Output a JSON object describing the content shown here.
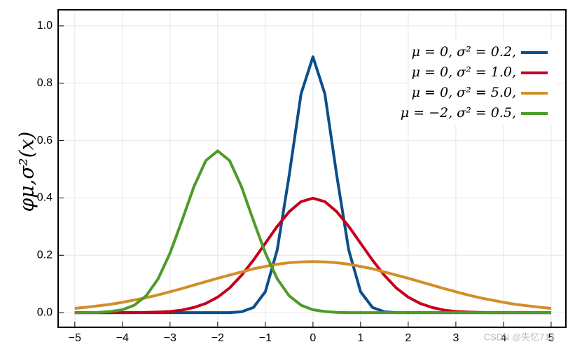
{
  "chart_data": {
    "type": "line",
    "y_label": "φμ,σ²(x)",
    "watermark": "CSDN @失忆713",
    "x": [
      -5,
      -4.75,
      -4.5,
      -4.25,
      -4,
      -3.75,
      -3.5,
      -3.25,
      -3,
      -2.75,
      -2.5,
      -2.25,
      -2,
      -1.75,
      -1.5,
      -1.25,
      -1,
      -0.75,
      -0.5,
      -0.25,
      0,
      0.25,
      0.5,
      0.75,
      1,
      1.25,
      1.5,
      1.75,
      2,
      2.25,
      2.5,
      2.75,
      3,
      3.25,
      3.5,
      3.75,
      4,
      4.25,
      4.5,
      4.75,
      5
    ],
    "series": [
      {
        "name": "μ = 0,   σ² = 0.2,",
        "color": "#0b4f8a",
        "values": [
          0,
          0,
          0,
          0,
          0,
          0,
          0,
          0,
          0,
          0,
          0,
          0,
          0,
          0,
          0.003,
          0.018,
          0.073,
          0.219,
          0.478,
          0.763,
          0.892,
          0.763,
          0.478,
          0.219,
          0.073,
          0.018,
          0.003,
          0,
          0,
          0,
          0,
          0,
          0,
          0,
          0,
          0,
          0,
          0,
          0,
          0,
          0
        ]
      },
      {
        "name": "μ = 0,   σ² = 1.0,",
        "color": "#c4001a",
        "values": [
          0,
          0,
          0,
          0,
          0,
          0,
          0.001,
          0.002,
          0.004,
          0.009,
          0.018,
          0.032,
          0.054,
          0.086,
          0.13,
          0.183,
          0.242,
          0.301,
          0.352,
          0.387,
          0.399,
          0.387,
          0.352,
          0.301,
          0.242,
          0.183,
          0.13,
          0.086,
          0.054,
          0.032,
          0.018,
          0.009,
          0.004,
          0.002,
          0.001,
          0,
          0,
          0,
          0,
          0,
          0
        ]
      },
      {
        "name": "μ = 0,   σ² = 5.0,",
        "color": "#d08f2a",
        "values": [
          0.015,
          0.019,
          0.024,
          0.029,
          0.036,
          0.044,
          0.052,
          0.062,
          0.073,
          0.084,
          0.096,
          0.108,
          0.12,
          0.131,
          0.142,
          0.153,
          0.161,
          0.169,
          0.174,
          0.177,
          0.178,
          0.177,
          0.174,
          0.169,
          0.161,
          0.153,
          0.142,
          0.131,
          0.12,
          0.108,
          0.096,
          0.084,
          0.073,
          0.062,
          0.052,
          0.044,
          0.036,
          0.029,
          0.024,
          0.019,
          0.015
        ]
      },
      {
        "name": "μ = −2, σ² = 0.5,",
        "color": "#4e9a2a",
        "values": [
          0,
          0,
          0.001,
          0.004,
          0.01,
          0.026,
          0.059,
          0.118,
          0.208,
          0.321,
          0.439,
          0.53,
          0.564,
          0.53,
          0.439,
          0.321,
          0.208,
          0.118,
          0.059,
          0.026,
          0.01,
          0.004,
          0.001,
          0,
          0,
          0,
          0,
          0,
          0,
          0,
          0,
          0,
          0,
          0,
          0,
          0,
          0,
          0,
          0,
          0,
          0
        ]
      }
    ],
    "xlim": [
      -5.35,
      5.31
    ],
    "ylim": [
      -0.051,
      1.056
    ],
    "xticks": [
      {
        "value": -5,
        "label": "−5"
      },
      {
        "value": -4,
        "label": "−4"
      },
      {
        "value": -3,
        "label": "−3"
      },
      {
        "value": -2,
        "label": "−2"
      },
      {
        "value": -1,
        "label": "−1"
      },
      0,
      1,
      2,
      3,
      4,
      5
    ],
    "yticks": [
      {
        "value": 0,
        "label": "0.0"
      },
      {
        "value": 0.2,
        "label": "0.2"
      },
      {
        "value": 0.4,
        "label": "0.4"
      },
      {
        "value": 0.6,
        "label": "0.6"
      },
      {
        "value": 0.8,
        "label": "0.8"
      },
      {
        "value": 1,
        "label": "1.0"
      }
    ],
    "grid": true,
    "legend": "upper right"
  }
}
